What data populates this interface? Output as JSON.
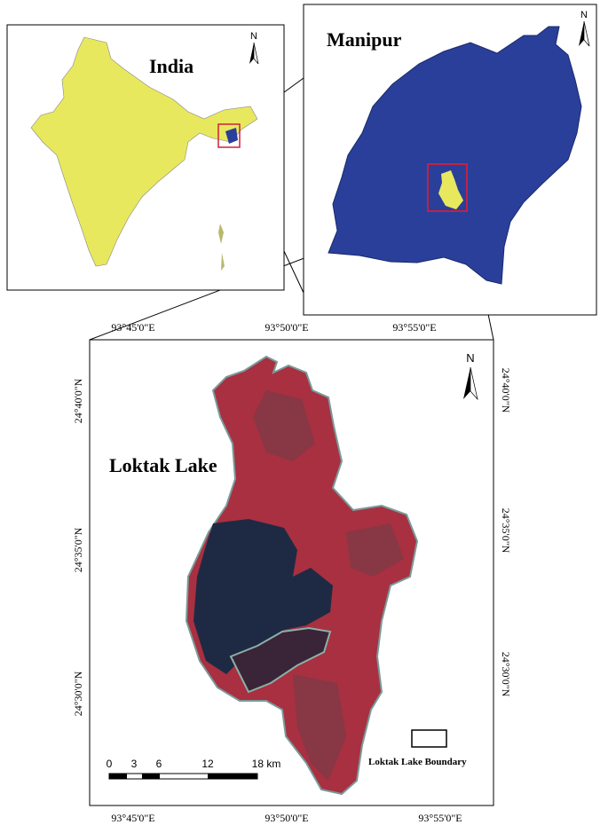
{
  "inset_india": {
    "title": "India",
    "north": "N"
  },
  "inset_manipur": {
    "title": "Manipur",
    "north": "N"
  },
  "main_map": {
    "title": "Loktak Lake",
    "north": "N",
    "top_labels": [
      "93°45'0\"E",
      "93°50'0\"E",
      "93°55'0\"E"
    ],
    "bottom_labels": [
      "93°45'0\"E",
      "93°50'0\"E",
      "93°55'0\"E"
    ],
    "left_labels": [
      "24°40'0\"N",
      "24°35'0\"N",
      "24°30'0\"N"
    ],
    "right_labels": [
      "24°40'0\"N",
      "24°35'0\"N",
      "24°30'0\"N"
    ],
    "scale_bar": [
      "0",
      "3",
      "6",
      "12",
      "18 km"
    ],
    "legend": "Loktak Lake Boundary"
  }
}
